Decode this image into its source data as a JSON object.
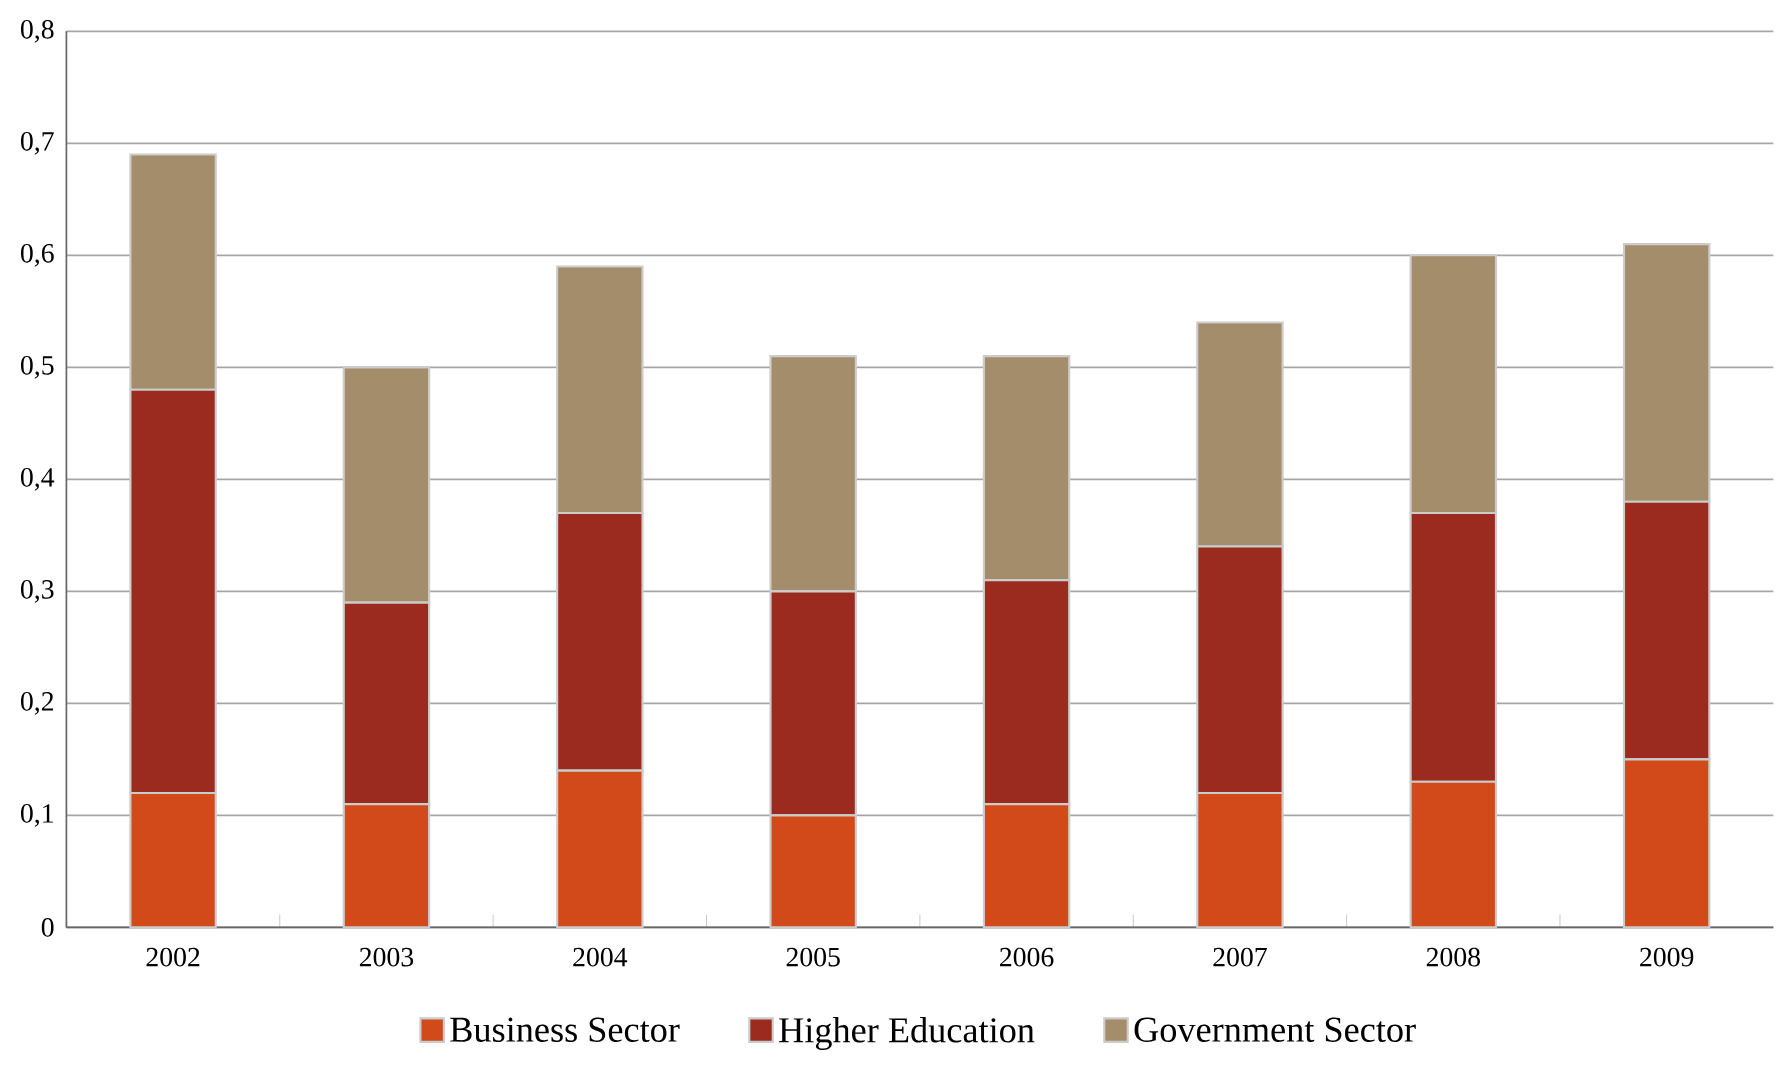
{
  "chart_data": {
    "type": "bar",
    "stacked": true,
    "categories": [
      "2002",
      "2003",
      "2004",
      "2005",
      "2006",
      "2007",
      "2008",
      "2009"
    ],
    "series": [
      {
        "name": "Business Sector",
        "color": "#d24a1a",
        "values": [
          0.12,
          0.11,
          0.14,
          0.1,
          0.11,
          0.12,
          0.13,
          0.15
        ]
      },
      {
        "name": "Higher Education",
        "color": "#9b2b1e",
        "values": [
          0.36,
          0.18,
          0.23,
          0.2,
          0.2,
          0.22,
          0.24,
          0.23
        ]
      },
      {
        "name": "Government Sector",
        "color": "#a38d6a",
        "values": [
          0.21,
          0.21,
          0.22,
          0.21,
          0.2,
          0.2,
          0.23,
          0.23
        ]
      }
    ],
    "ylim": [
      0,
      0.8
    ],
    "yticks": [
      {
        "value": 0,
        "label": "0"
      },
      {
        "value": 0.1,
        "label": "0,1"
      },
      {
        "value": 0.2,
        "label": "0,2"
      },
      {
        "value": 0.3,
        "label": "0,3"
      },
      {
        "value": 0.4,
        "label": "0,4"
      },
      {
        "value": 0.5,
        "label": "0,5"
      },
      {
        "value": 0.6,
        "label": "0,6"
      },
      {
        "value": 0.7,
        "label": "0,7"
      },
      {
        "value": 0.8,
        "label": "0,8"
      }
    ],
    "grid": "y",
    "legend": "bottom"
  }
}
